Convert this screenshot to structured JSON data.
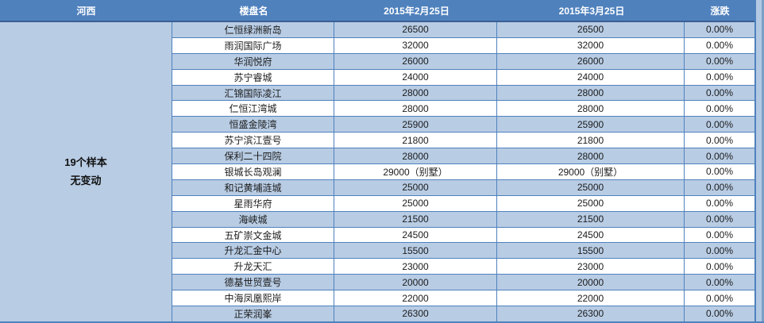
{
  "header": {
    "columns": [
      "河西",
      "楼盘名",
      "2015年2月25日",
      "2015年3月25日",
      "涨跌"
    ]
  },
  "summary": {
    "line1": "19个样本",
    "line2": "无变动"
  },
  "rows": [
    {
      "name": "仁恒绿洲新岛",
      "feb": "26500",
      "mar": "26500",
      "change": "0.00%"
    },
    {
      "name": "雨润国际广场",
      "feb": "32000",
      "mar": "32000",
      "change": "0.00%"
    },
    {
      "name": "华润悦府",
      "feb": "26000",
      "mar": "26000",
      "change": "0.00%"
    },
    {
      "name": "苏宁睿城",
      "feb": "24000",
      "mar": "24000",
      "change": "0.00%"
    },
    {
      "name": "汇锦国际凌江",
      "feb": "28000",
      "mar": "28000",
      "change": "0.00%"
    },
    {
      "name": "仁恒江湾城",
      "feb": "28000",
      "mar": "28000",
      "change": "0.00%"
    },
    {
      "name": "恒盛金陵湾",
      "feb": "25900",
      "mar": "25900",
      "change": "0.00%"
    },
    {
      "name": "苏宁滨江壹号",
      "feb": "21800",
      "mar": "21800",
      "change": "0.00%"
    },
    {
      "name": "保利二十四院",
      "feb": "28000",
      "mar": "28000",
      "change": "0.00%"
    },
    {
      "name": "银城长岛观澜",
      "feb": "29000（别墅）",
      "mar": "29000（别墅）",
      "change": "0.00%"
    },
    {
      "name": "和记黄埔涟城",
      "feb": "25000",
      "mar": "25000",
      "change": "0.00%"
    },
    {
      "name": "星雨华府",
      "feb": "25000",
      "mar": "25000",
      "change": "0.00%"
    },
    {
      "name": "海峡城",
      "feb": "21500",
      "mar": "21500",
      "change": "0.00%"
    },
    {
      "name": "五矿崇文金城",
      "feb": "24500",
      "mar": "24500",
      "change": "0.00%"
    },
    {
      "name": "升龙汇金中心",
      "feb": "15500",
      "mar": "15500",
      "change": "0.00%"
    },
    {
      "name": "升龙天汇",
      "feb": "23000",
      "mar": "23000",
      "change": "0.00%"
    },
    {
      "name": "德基世贸壹号",
      "feb": "20000",
      "mar": "20000",
      "change": "0.00%"
    },
    {
      "name": "中海凤凰熙岸",
      "feb": "22000",
      "mar": "22000",
      "change": "0.00%"
    },
    {
      "name": "正荣润峯",
      "feb": "26300",
      "mar": "26300",
      "change": "0.00%"
    }
  ],
  "colors": {
    "header_bg": "#4f81bd",
    "header_text": "#ffffff",
    "row_alt_bg": "#b8cce4",
    "row_bg": "#ffffff",
    "grid_border": "#4f81bd",
    "header_underline": "#3a5f93",
    "outer_edge": "#7aa0c8",
    "strip_bg": "#b3c9e3"
  }
}
